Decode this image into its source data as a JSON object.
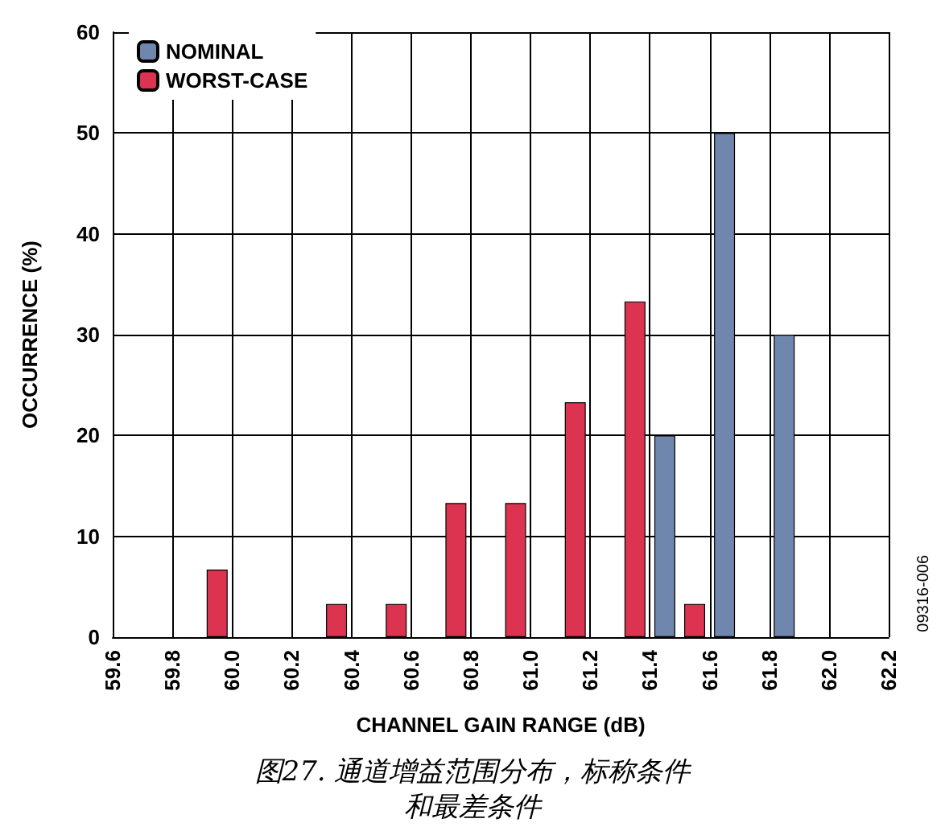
{
  "chart_data": {
    "type": "bar",
    "title": "图27. 通道增益范围分布，标称条件和最差条件",
    "xlabel": "CHANNEL GAIN RANGE (dB)",
    "ylabel": "OCCURRENCE (%)",
    "annotations": [
      "09316-006"
    ],
    "series": [
      {
        "name": "NOMINAL",
        "color": "#6f86ad",
        "x": [
          61.45,
          61.65,
          61.85
        ],
        "values": [
          20,
          50,
          30
        ]
      },
      {
        "name": "WORST-CASE",
        "color": "#dc3450",
        "x": [
          59.95,
          60.35,
          60.55,
          60.75,
          60.95,
          61.15,
          61.35,
          61.55
        ],
        "values": [
          6.7,
          3.3,
          3.3,
          13.3,
          13.3,
          23.3,
          33.3,
          3.3
        ]
      }
    ],
    "xlim": [
      59.6,
      62.2
    ],
    "xticks": [
      59.6,
      59.8,
      {
        "value": 60,
        "label": "60.0"
      },
      60.2,
      60.4,
      60.6,
      60.8,
      {
        "value": 61,
        "label": "61.0"
      },
      61.2,
      61.4,
      61.6,
      61.8,
      {
        "value": 62,
        "label": "62.0"
      },
      62.2
    ],
    "ylim": [
      0,
      60
    ],
    "yticks": [
      0,
      10,
      20,
      30,
      40,
      50,
      60
    ],
    "grid": true,
    "legend": "top left"
  }
}
